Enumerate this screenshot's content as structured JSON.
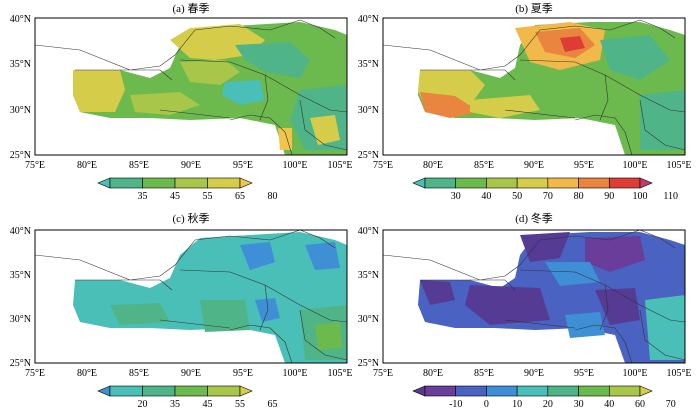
{
  "map": {
    "x_ticks": [
      "75°E",
      "80°E",
      "85°E",
      "90°E",
      "95°E",
      "100°E",
      "105°E"
    ],
    "y_ticks": [
      "25°N",
      "30°N",
      "35°N",
      "40°N"
    ],
    "x_range": [
      75,
      105
    ],
    "y_range": [
      25,
      40
    ]
  },
  "panels": [
    {
      "title": "(a) 春季",
      "colorbar": {
        "ticks": [
          "35",
          "45",
          "55",
          "65",
          "80"
        ],
        "colors": [
          "#49bfb8",
          "#4fb589",
          "#6cb94e",
          "#a7c64a",
          "#d5cd4a",
          "#f0c54b"
        ]
      }
    },
    {
      "title": "(b) 夏季",
      "colorbar": {
        "ticks": [
          "30",
          "40",
          "50",
          "70",
          "80",
          "90",
          "100",
          "110"
        ],
        "colors": [
          "#49bfb8",
          "#4fb589",
          "#6cb94e",
          "#a7c64a",
          "#d5cd4a",
          "#f0b94a",
          "#e9853e",
          "#de3d35",
          "#c8386e"
        ]
      }
    },
    {
      "title": "(c) 秋季",
      "colorbar": {
        "ticks": [
          "20",
          "35",
          "45",
          "55",
          "65"
        ],
        "colors": [
          "#3f8fd6",
          "#49bfb8",
          "#4fb589",
          "#6cb94e",
          "#a7c64a",
          "#d5cd4a"
        ]
      }
    },
    {
      "title": "(d) 冬季",
      "colorbar": {
        "ticks": [
          "-10",
          "0",
          "10",
          "20",
          "30",
          "40",
          "60",
          "70"
        ],
        "colors": [
          "#553b93",
          "#6a3d9a",
          "#4a62c2",
          "#3f8fd6",
          "#49bfb8",
          "#4fb589",
          "#6cb94e",
          "#a7c64a",
          "#d5cd4a"
        ]
      }
    }
  ]
}
